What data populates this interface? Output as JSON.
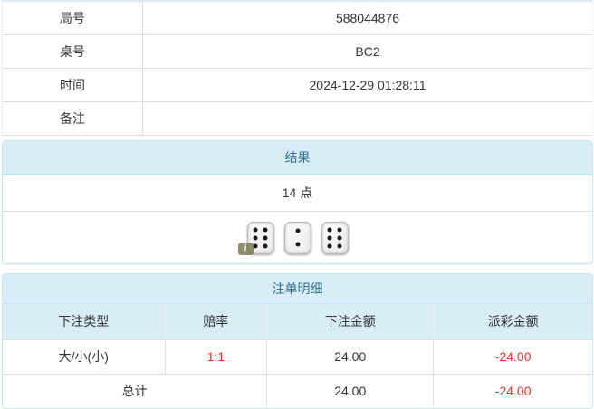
{
  "colors": {
    "panel_border": "#c9e6f0",
    "panel_header_bg": "#d9edf7",
    "panel_header_text": "#31708f",
    "table_border": "#dddddd",
    "body_text": "#333333",
    "negative_text": "#e23434",
    "info_badge_bg": "#70704a"
  },
  "info_table": {
    "rows": [
      {
        "label": "局号",
        "value": "588044876"
      },
      {
        "label": "桌号",
        "value": "BC2"
      },
      {
        "label": "时间",
        "value": "2024-12-29 01:28:11"
      },
      {
        "label": "备注",
        "value": ""
      }
    ]
  },
  "result_panel": {
    "title": "结果",
    "points": "14 点",
    "dice": [
      6,
      2,
      6
    ],
    "info_badge": "i"
  },
  "bet_panel": {
    "title": "注单明细",
    "columns": [
      "下注类型",
      "赔率",
      "下注金额",
      "派彩金额"
    ],
    "rows": [
      {
        "type": "大/小(小)",
        "odds": "1:1",
        "bet": "24.00",
        "payout": "-24.00"
      }
    ],
    "total": {
      "label": "总计",
      "bet": "24.00",
      "payout": "-24.00"
    }
  }
}
